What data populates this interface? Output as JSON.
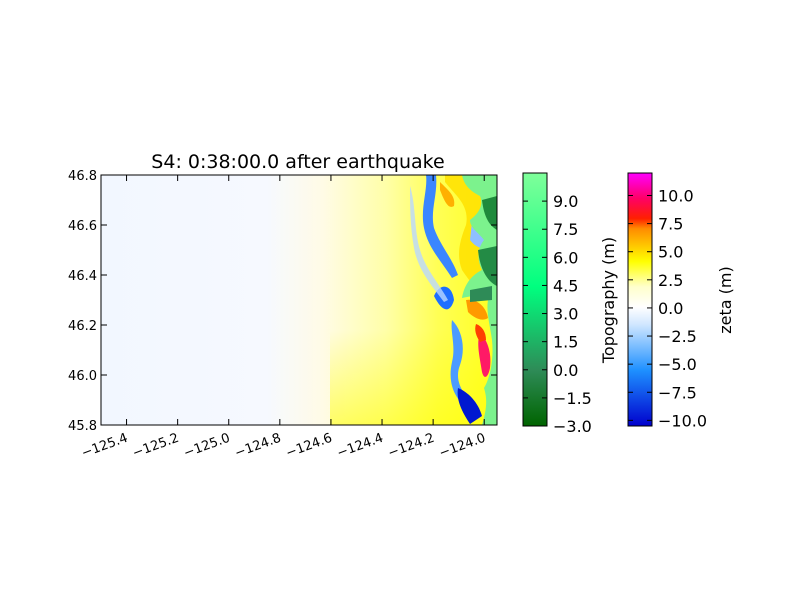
{
  "chart_data": {
    "type": "heatmap",
    "title": "S4: 0:38:00.0 after earthquake",
    "xlabel": "",
    "ylabel": "",
    "xlim": [
      -125.5,
      -123.95
    ],
    "ylim": [
      45.8,
      46.8
    ],
    "x_ticks": [
      -125.4,
      -125.2,
      -125.0,
      -124.8,
      -124.6,
      -124.4,
      -124.2,
      -124.0
    ],
    "x_tick_labels": [
      "−125.4",
      "−125.2",
      "−125.0",
      "−124.8",
      "−124.6",
      "−124.4",
      "−124.2",
      "−124.0"
    ],
    "y_ticks": [
      45.8,
      46.0,
      46.2,
      46.4,
      46.6,
      46.8
    ],
    "y_tick_labels": [
      "45.8",
      "46.0",
      "46.2",
      "46.4",
      "46.6",
      "46.8"
    ],
    "grid": false,
    "colorbars": [
      {
        "label": "Topography (m)",
        "range": [
          -3.0,
          10.5
        ],
        "ticks": [
          -3.0,
          -1.5,
          0.0,
          1.5,
          3.0,
          4.5,
          6.0,
          7.5,
          9.0
        ],
        "tick_labels": [
          "−3.0",
          "−1.5",
          "0.0",
          "1.5",
          "3.0",
          "4.5",
          "6.0",
          "7.5",
          "9.0"
        ],
        "colors": [
          "#006400",
          "#2e8b57",
          "#00ff7f",
          "#7fff9a"
        ]
      },
      {
        "label": "zeta (m)",
        "range": [
          -10.5,
          12.0
        ],
        "ticks": [
          -10.0,
          -7.5,
          -5.0,
          -2.5,
          0.0,
          2.5,
          5.0,
          7.5,
          10.0
        ],
        "tick_labels": [
          "−10.0",
          "−7.5",
          "−5.0",
          "−2.5",
          "0.0",
          "2.5",
          "5.0",
          "7.5",
          "10.0"
        ],
        "colors": [
          "#0000cd",
          "#1e90ff",
          "#ffffff",
          "#ffff00",
          "#ff8c00",
          "#ff0000",
          "#ff00ff"
        ]
      }
    ]
  }
}
